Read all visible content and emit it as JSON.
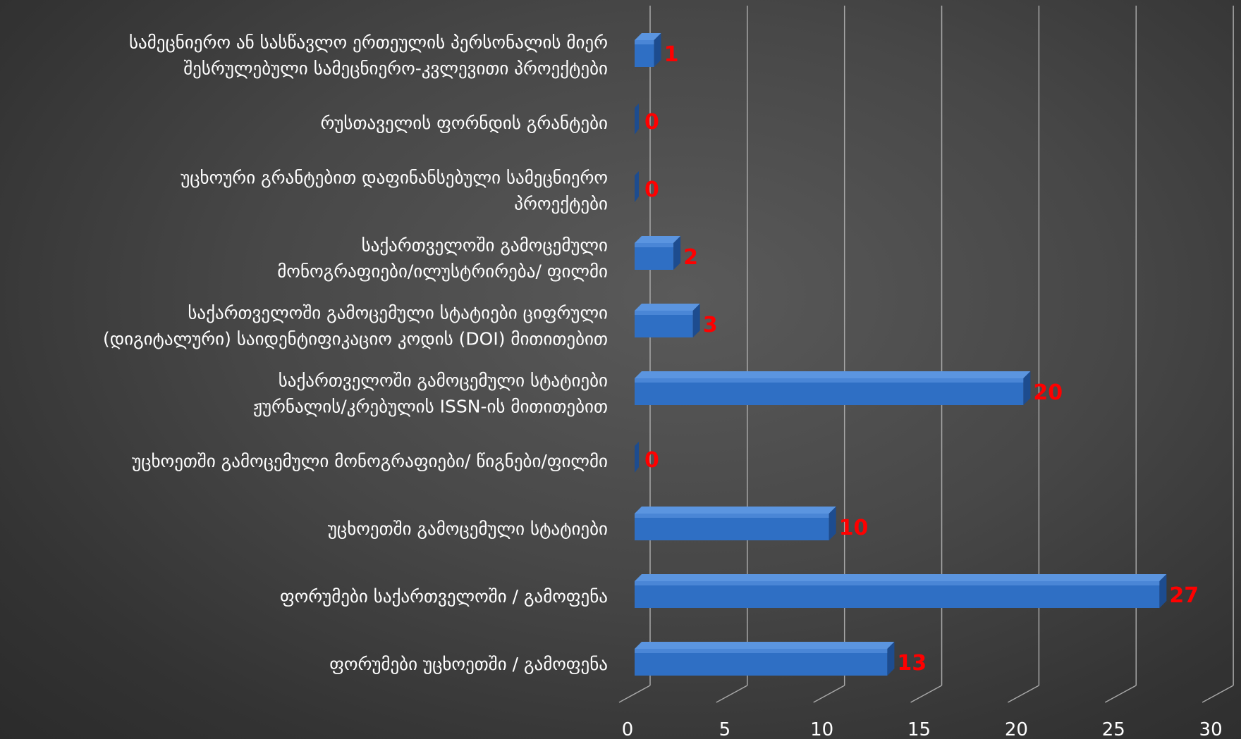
{
  "chart_data": {
    "type": "bar",
    "orientation": "horizontal",
    "categories": [
      [
        "სამეცნიერო ან სასწავლო ერთეულის პერსონალის მიერ",
        "შესრულებული  სამეცნიერო-კვლევითი პროექტები"
      ],
      [
        "რუსთაველის ფორნდის გრანტები"
      ],
      [
        "უცხოური გრანტებით დაფინანსებული სამეცნიერო",
        "პროექტები"
      ],
      [
        "საქართველოში გამოცემული",
        "მონოგრაფიები/ილუსტრირება/ ფილმი"
      ],
      [
        "საქართველოში გამოცემული სტატიები ციფრული",
        "(დიგიტალური) საიდენტიფიკაციო კოდის (DOI) მითითებით"
      ],
      [
        "საქართველოში გამოცემული სტატიები",
        "ჟურნალის/კრებულის ISSN-ის მითითებით"
      ],
      [
        "უცხოეთში გამოცემული მონოგრაფიები/ წიგნები/ფილმი"
      ],
      [
        "უცხოეთში გამოცემული სტატიები"
      ],
      [
        "ფორუმები საქართველოში / გამოფენა"
      ],
      [
        "ფორუმები უცხოეთში / გამოფენა"
      ]
    ],
    "values": [
      1,
      0,
      0,
      2,
      3,
      20,
      0,
      10,
      27,
      13
    ],
    "data_labels": [
      "1",
      "0",
      "0",
      "2",
      "3",
      "20",
      "0",
      "10",
      "27",
      "13"
    ],
    "xlim": [
      0,
      30
    ],
    "x_ticks": [
      "0",
      "5",
      "10",
      "15",
      "20",
      "25",
      "30"
    ],
    "grid": true,
    "style_3d": true,
    "title": "",
    "xlabel": "",
    "ylabel": "",
    "colors": {
      "bar": "#2f6fc4",
      "bar_top": "#5b95e0",
      "bar_side": "#1d4c8f",
      "data_label": "#ff0000",
      "text": "#ffffff",
      "grid": "#a8a8a8"
    }
  }
}
